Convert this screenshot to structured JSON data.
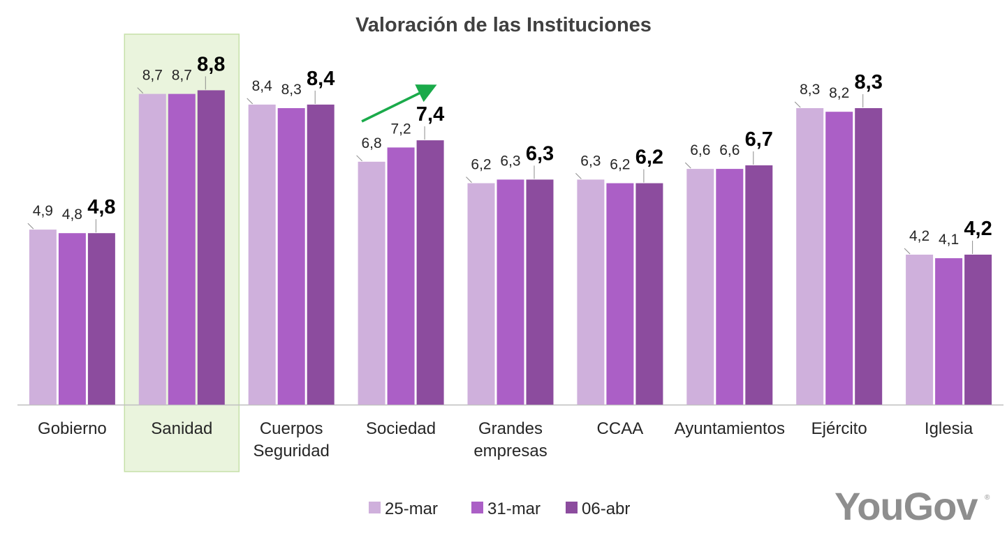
{
  "brand": {
    "name": "YouGov",
    "registered_mark": "®"
  },
  "highlight_category": "Sanidad",
  "trend_arrow": {
    "category": "Sociedad",
    "color": "#1aaa4a"
  },
  "colors": {
    "series": [
      "#cfb0dc",
      "#ab5fc6",
      "#8c4c9e"
    ],
    "highlight_fill": "#eaf4dd",
    "highlight_stroke": "#c6e0a8",
    "axis": "#bfbfbf",
    "leader": "#8c8c8c"
  },
  "chart_data": {
    "type": "bar",
    "title": "Valoración de las Instituciones",
    "xlabel": "",
    "ylabel": "",
    "ylim": [
      0,
      10
    ],
    "grid": false,
    "legend_position": "bottom",
    "categories": [
      [
        "Gobierno"
      ],
      [
        "Sanidad"
      ],
      [
        "Cuerpos",
        "Seguridad"
      ],
      [
        "Sociedad"
      ],
      [
        "Grandes",
        "empresas"
      ],
      [
        "CCAA"
      ],
      [
        "Ayuntamientos"
      ],
      [
        "Ejército"
      ],
      [
        "Iglesia"
      ]
    ],
    "series": [
      {
        "name": "25-mar",
        "values": [
          4.9,
          8.7,
          8.4,
          6.8,
          6.2,
          6.3,
          6.6,
          8.3,
          4.2
        ],
        "labels": [
          "4,9",
          "8,7",
          "8,4",
          "6,8",
          "6,2",
          "6,3",
          "6,6",
          "8,3",
          "4,2"
        ]
      },
      {
        "name": "31-mar",
        "values": [
          4.8,
          8.7,
          8.3,
          7.2,
          6.3,
          6.2,
          6.6,
          8.2,
          4.1
        ],
        "labels": [
          "4,8",
          "8,7",
          "8,3",
          "7,2",
          "6,3",
          "6,2",
          "6,6",
          "8,2",
          "4,1"
        ]
      },
      {
        "name": "06-abr",
        "values": [
          4.8,
          8.8,
          8.4,
          7.4,
          6.3,
          6.2,
          6.7,
          8.3,
          4.2
        ],
        "labels": [
          "4,8",
          "8,8",
          "8,4",
          "7,4",
          "6,3",
          "6,2",
          "6,7",
          "8,3",
          "4,2"
        ]
      }
    ]
  }
}
